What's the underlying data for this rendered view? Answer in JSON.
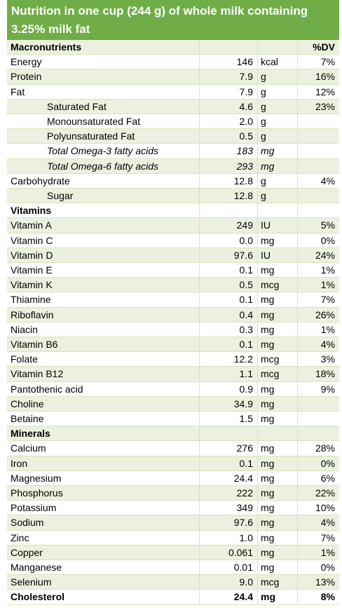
{
  "header": {
    "title": "Nutrition in one cup (244 g) of whole milk containing 3.25% milk fat"
  },
  "table": {
    "rows": [
      {
        "name": "Macronutrients",
        "dv": "%DV"
      },
      {
        "name": "Energy",
        "value": "146",
        "unit": "kcal",
        "dv": "7%"
      },
      {
        "name": "Protein",
        "value": "7.9",
        "unit": "g",
        "dv": "16%"
      },
      {
        "name": "Fat",
        "value": "7.9",
        "unit": "g",
        "dv": "12%"
      },
      {
        "name": "Saturated Fat",
        "value": "4.6",
        "unit": "g",
        "dv": "23%"
      },
      {
        "name": "Monounsaturated Fat",
        "value": "2.0",
        "unit": "g"
      },
      {
        "name": "Polyunsaturated Fat",
        "value": "0.5",
        "unit": "g"
      },
      {
        "name": "Total Omega-3 fatty acids",
        "value": "183",
        "unit": "mg"
      },
      {
        "name": "Total Omega-6 fatty acids",
        "value": "293",
        "unit": "mg"
      },
      {
        "name": "Carbohydrate",
        "value": "12.8",
        "unit": "g",
        "dv": "4%"
      },
      {
        "name": "Sugar",
        "value": "12.8",
        "unit": "g"
      },
      {
        "name": "Vitamins"
      },
      {
        "name": "Vitamin A",
        "value": "249",
        "unit": "IU",
        "dv": "5%"
      },
      {
        "name": "Vitamin C",
        "value": "0.0",
        "unit": "mg",
        "dv": "0%"
      },
      {
        "name": "Vitamin D",
        "value": "97.6",
        "unit": "IU",
        "dv": "24%"
      },
      {
        "name": "Vitamin E",
        "value": "0.1",
        "unit": "mg",
        "dv": "1%"
      },
      {
        "name": "Vitamin K",
        "value": "0.5",
        "unit": "mcg",
        "dv": "1%"
      },
      {
        "name": "Thiamine",
        "value": "0.1",
        "unit": "mg",
        "dv": "7%"
      },
      {
        "name": "Riboflavin",
        "value": "0.4",
        "unit": "mg",
        "dv": "26%"
      },
      {
        "name": "Niacin",
        "value": "0.3",
        "unit": "mg",
        "dv": "1%"
      },
      {
        "name": "Vitamin B6",
        "value": "0.1",
        "unit": "mg",
        "dv": "4%"
      },
      {
        "name": "Folate",
        "value": "12.2",
        "unit": "mcg",
        "dv": "3%"
      },
      {
        "name": "Vitamin B12",
        "value": "1.1",
        "unit": "mcg",
        "dv": "18%"
      },
      {
        "name": "Pantothenic acid",
        "value": "0.9",
        "unit": "mg",
        "dv": "9%"
      },
      {
        "name": "Choline",
        "value": "34.9",
        "unit": "mg"
      },
      {
        "name": "Betaine",
        "value": "1.5",
        "unit": "mg"
      },
      {
        "name": "Minerals"
      },
      {
        "name": "Calcium",
        "value": "276",
        "unit": "mg",
        "dv": "28%"
      },
      {
        "name": "Iron",
        "value": "0.1",
        "unit": "mg",
        "dv": "0%"
      },
      {
        "name": "Magnesium",
        "value": "24.4",
        "unit": "mg",
        "dv": "6%"
      },
      {
        "name": "Phosphorus",
        "value": "222",
        "unit": "mg",
        "dv": "22%"
      },
      {
        "name": "Potassium",
        "value": "349",
        "unit": "mg",
        "dv": "10%"
      },
      {
        "name": "Sodium",
        "value": "97.6",
        "unit": "mg",
        "dv": "4%"
      },
      {
        "name": "Zinc",
        "value": "1.0",
        "unit": "mg",
        "dv": "7%"
      },
      {
        "name": "Copper",
        "value": "0.061",
        "unit": "mg",
        "dv": "1%"
      },
      {
        "name": "Manganese",
        "value": "0.01",
        "unit": "mg",
        "dv": "0%"
      },
      {
        "name": "Selenium",
        "value": "9.0",
        "unit": "mcg",
        "dv": "13%"
      },
      {
        "name": "Cholesterol",
        "value": "24.4",
        "unit": "mg",
        "dv": "8%"
      }
    ]
  }
}
